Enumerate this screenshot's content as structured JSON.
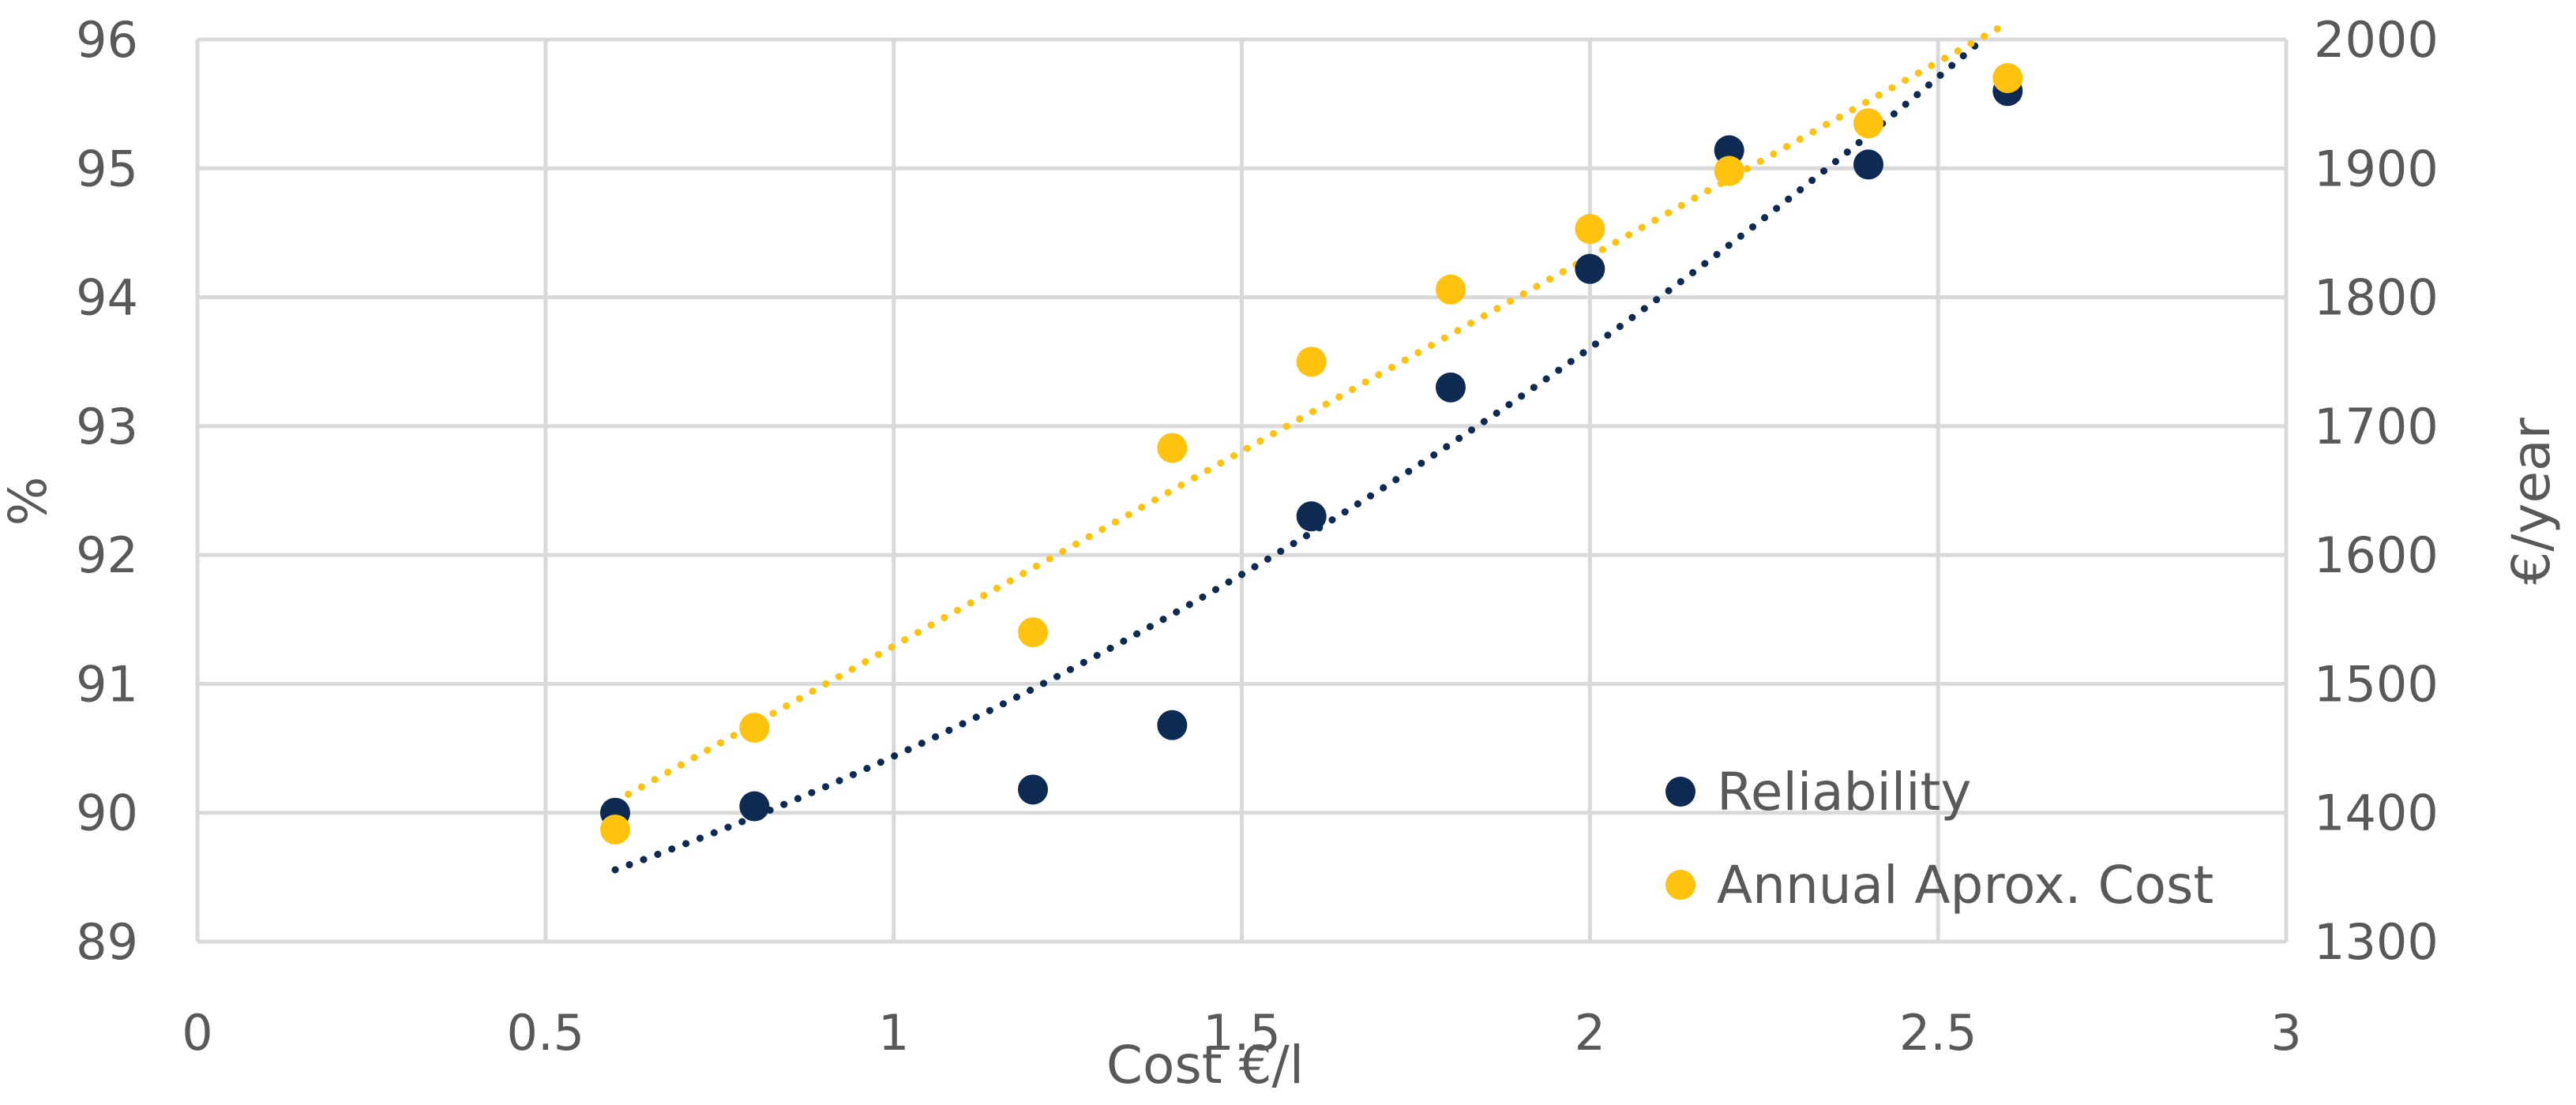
{
  "chart_data": {
    "type": "scatter",
    "title": "",
    "xlabel": "Cost €/l",
    "ylabel": "%",
    "y2label": "€/year",
    "xlim": [
      0,
      3
    ],
    "ylim": [
      89,
      96
    ],
    "y2lim": [
      1300,
      2000
    ],
    "x_ticks": [
      "0",
      "0.5",
      "1",
      "1.5",
      "2",
      "2.5",
      "3"
    ],
    "y_ticks": [
      "89",
      "90",
      "91",
      "92",
      "93",
      "94",
      "95",
      "96"
    ],
    "y2_ticks": [
      "1300",
      "1400",
      "1500",
      "1600",
      "1700",
      "1800",
      "1900",
      "2000"
    ],
    "grid": true,
    "legend_position": "bottom-right",
    "series": [
      {
        "name": "Reliability",
        "axis": "left",
        "color": "#0d2a52",
        "trendline": "dotted",
        "x": [
          0.6,
          0.8,
          1.2,
          1.4,
          1.6,
          1.8,
          2.0,
          2.2,
          2.4,
          2.6
        ],
        "values": [
          90.0,
          90.05,
          90.18,
          90.68,
          92.3,
          93.3,
          94.22,
          95.14,
          95.03,
          95.6
        ]
      },
      {
        "name": "Annual Aprox. Cost",
        "axis": "right",
        "color": "#ffc20e",
        "trendline": "dotted",
        "x": [
          0.6,
          0.8,
          1.2,
          1.4,
          1.6,
          1.8,
          2.0,
          2.2,
          2.4,
          2.6
        ],
        "values": [
          1387,
          1466,
          1540,
          1683,
          1750,
          1806,
          1853,
          1898,
          1935,
          1970
        ]
      }
    ]
  }
}
